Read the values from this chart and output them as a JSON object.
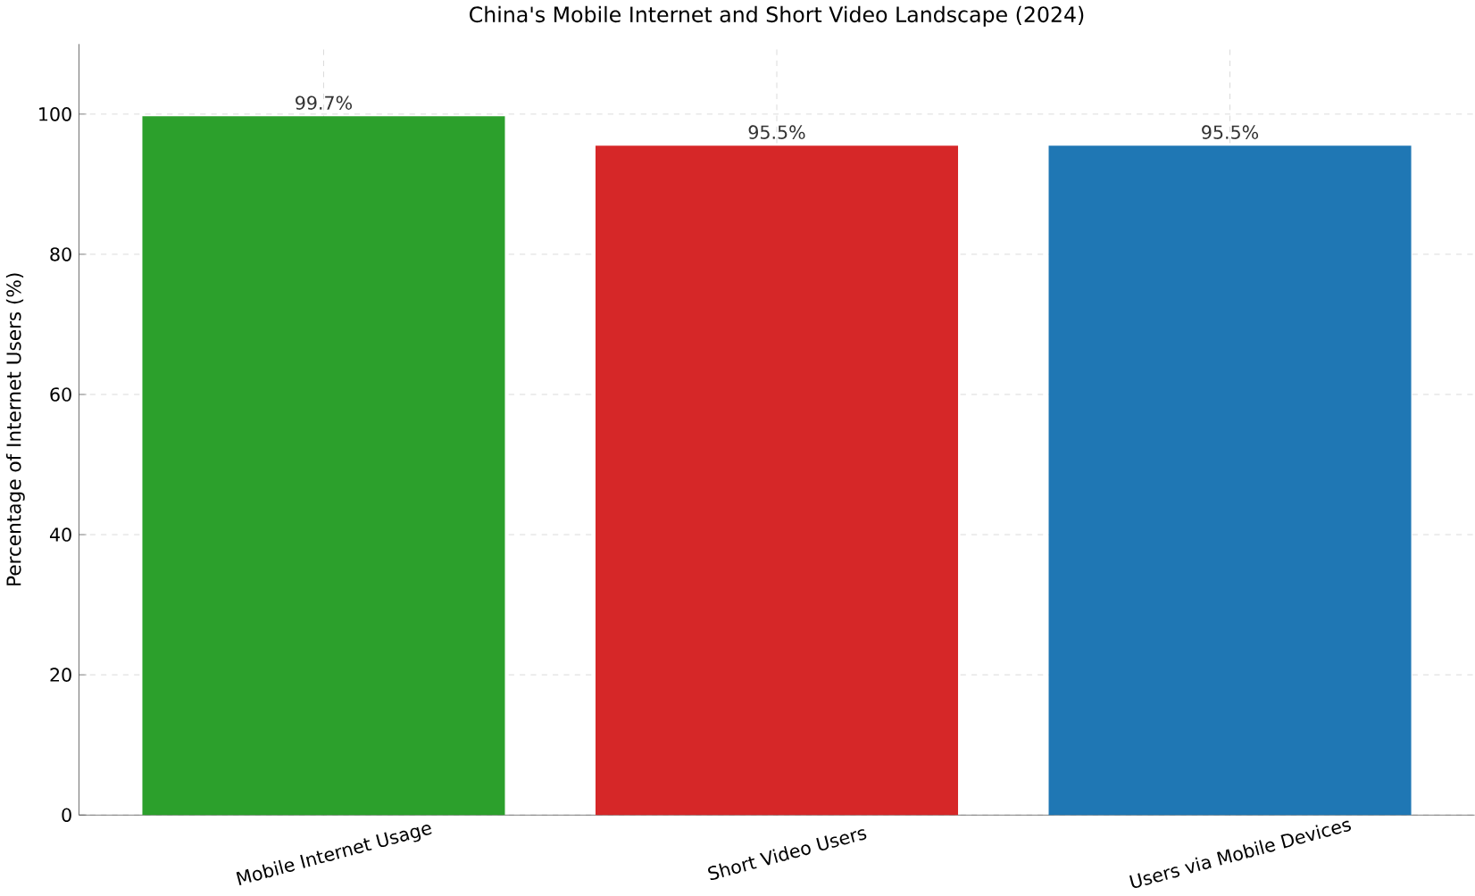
{
  "chart_data": {
    "type": "bar",
    "title": "China's Mobile Internet and Short Video Landscape (2024)",
    "ylabel": "Percentage of Internet Users (%)",
    "categories": [
      "Mobile Internet Usage",
      "Short Video Users",
      "Users via Mobile Devices"
    ],
    "values": [
      99.7,
      95.5,
      95.5
    ],
    "colors": [
      "#2ca02c",
      "#d62728",
      "#1f77b4"
    ],
    "value_labels": [
      "99.7%",
      "95.5%",
      "95.5%"
    ],
    "ylim": [
      0,
      110
    ],
    "yticks": [
      0,
      20,
      40,
      60,
      80,
      100
    ],
    "grid": true
  }
}
